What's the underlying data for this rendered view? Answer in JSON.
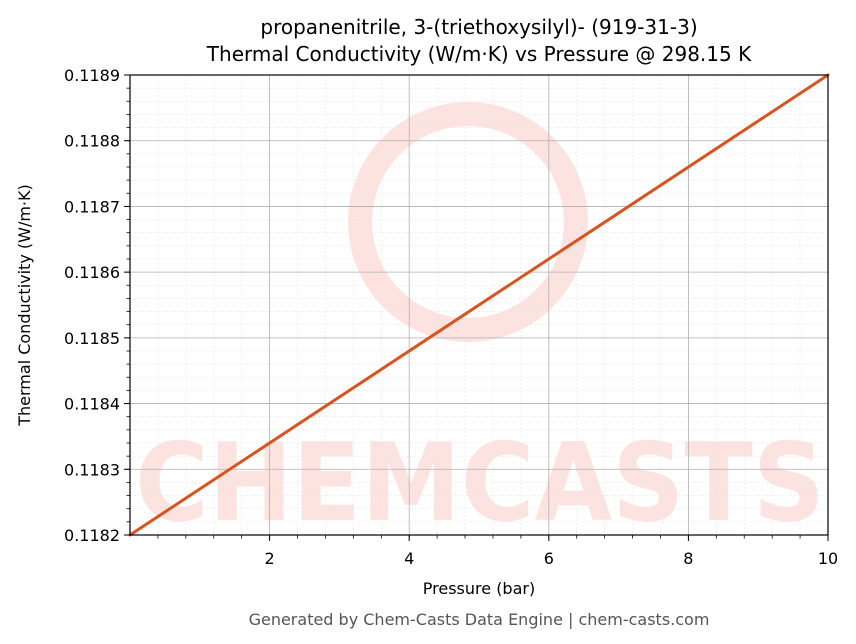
{
  "chart_data": {
    "type": "line",
    "title": "propanenitrile, 3-(triethoxysilyl)- (919-31-3)",
    "subtitle": "Thermal Conductivity (W/m·K) vs Pressure @ 298.15 K",
    "xlabel": "Pressure (bar)",
    "ylabel": "Thermal Conductivity (W/m·K)",
    "xlim": [
      0,
      10
    ],
    "ylim": [
      0.1182,
      0.1189
    ],
    "x_ticks": [
      2,
      4,
      6,
      8,
      10
    ],
    "x_tick_labels": [
      "2",
      "4",
      "6",
      "8",
      "10"
    ],
    "y_ticks": [
      0.1182,
      0.1183,
      0.1184,
      0.1185,
      0.1186,
      0.1187,
      0.1188,
      0.1189
    ],
    "y_tick_labels": [
      "0.1182",
      "0.1183",
      "0.1184",
      "0.1185",
      "0.1186",
      "0.1187",
      "0.1188",
      "0.1189"
    ],
    "grid": true,
    "series": [
      {
        "color": "#d9531e",
        "x": [
          0,
          10
        ],
        "y": [
          0.1182,
          0.1189
        ]
      }
    ]
  },
  "watermark": {
    "text": "CHEMCASTS",
    "color": "#fde3e0"
  },
  "footer": {
    "text": "Generated by Chem-Casts Data Engine | chem-casts.com"
  }
}
